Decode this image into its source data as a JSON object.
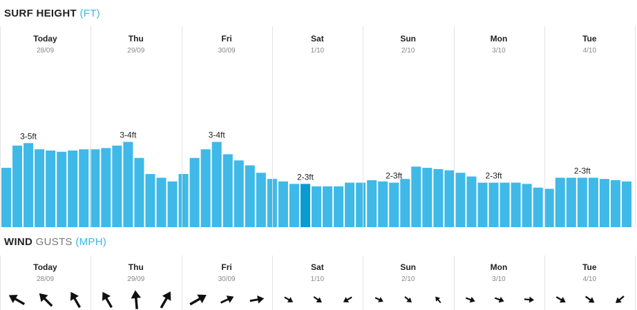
{
  "surf_section": {
    "title": "SURF HEIGHT",
    "unit": "(FT)"
  },
  "wind_section": {
    "title": "WIND",
    "subtitle": "GUSTS",
    "unit": "(MPH)"
  },
  "days": [
    {
      "name": "Today",
      "date": "28/09"
    },
    {
      "name": "Thu",
      "date": "29/09"
    },
    {
      "name": "Fri",
      "date": "30/09"
    },
    {
      "name": "Sat",
      "date": "1/10"
    },
    {
      "name": "Sun",
      "date": "2/10"
    },
    {
      "name": "Mon",
      "date": "3/10"
    },
    {
      "name": "Tue",
      "date": "4/10"
    }
  ],
  "chart_data": {
    "type": "bar",
    "title": "SURF HEIGHT (FT)",
    "ylim": [
      0,
      5
    ],
    "grid": false,
    "highlight_index": 27,
    "colors": {
      "bar": "#3fb9e8",
      "highlight": "#0a9bd1"
    },
    "values": [
      2.4,
      3.3,
      3.4,
      3.15,
      3.1,
      3.05,
      3.1,
      3.15,
      3.15,
      3.2,
      3.3,
      3.45,
      2.8,
      2.15,
      2.0,
      1.85,
      2.15,
      2.8,
      3.15,
      3.45,
      2.95,
      2.7,
      2.5,
      2.2,
      1.95,
      1.85,
      1.75,
      1.75,
      1.65,
      1.65,
      1.65,
      1.8,
      1.8,
      1.9,
      1.85,
      1.8,
      1.95,
      2.45,
      2.4,
      2.35,
      2.3,
      2.2,
      2.05,
      1.8,
      1.8,
      1.8,
      1.8,
      1.75,
      1.6,
      1.55,
      2.0,
      2.0,
      2.0,
      2.0,
      1.95,
      1.9,
      1.85
    ],
    "day_labels": [
      {
        "text": "3-5ft",
        "index": 2
      },
      {
        "text": "3-4ft",
        "index": 11
      },
      {
        "text": "3-4ft",
        "index": 19
      },
      {
        "text": "2-3ft",
        "index": 27
      },
      {
        "text": "2-3ft",
        "index": 35
      },
      {
        "text": "2-3ft",
        "index": 44
      },
      {
        "text": "2-3ft",
        "index": 52
      }
    ]
  },
  "wind_data": {
    "color": "#111111",
    "arrows": [
      {
        "angle": 300,
        "size": 1.0
      },
      {
        "angle": 315,
        "size": 1.0
      },
      {
        "angle": 330,
        "size": 1.0
      },
      {
        "angle": 330,
        "size": 1.0
      },
      {
        "angle": 355,
        "size": 1.05
      },
      {
        "angle": 30,
        "size": 1.05
      },
      {
        "angle": 60,
        "size": 1.05
      },
      {
        "angle": 65,
        "size": 0.8
      },
      {
        "angle": 80,
        "size": 0.8
      },
      {
        "angle": 120,
        "size": 0.55
      },
      {
        "angle": 125,
        "size": 0.55
      },
      {
        "angle": 240,
        "size": 0.55
      },
      {
        "angle": 115,
        "size": 0.5
      },
      {
        "angle": 130,
        "size": 0.5
      },
      {
        "angle": 320,
        "size": 0.45
      },
      {
        "angle": 110,
        "size": 0.55
      },
      {
        "angle": 110,
        "size": 0.55
      },
      {
        "angle": 95,
        "size": 0.55
      },
      {
        "angle": 120,
        "size": 0.6
      },
      {
        "angle": 125,
        "size": 0.6
      },
      {
        "angle": 230,
        "size": 0.6
      }
    ]
  }
}
